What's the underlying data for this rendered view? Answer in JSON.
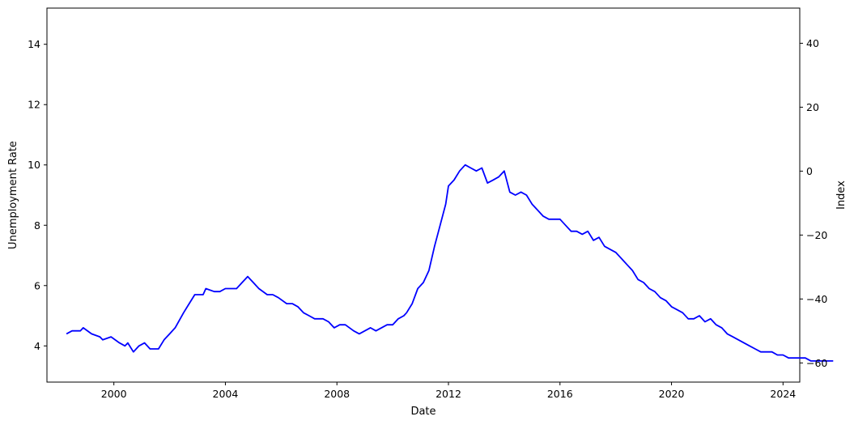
{
  "chart_data": {
    "type": "line",
    "title": "",
    "xlabel": "Date",
    "ylabel_left": "Unemployment Rate",
    "ylabel_right": "Index",
    "xlim": [
      1997.6,
      2024.6
    ],
    "ylim_left": [
      2.8,
      15.2
    ],
    "ylim_right": [
      -66,
      51
    ],
    "x_ticks": [
      2000,
      2004,
      2008,
      2012,
      2016,
      2020,
      2024
    ],
    "y_ticks_left": [
      4,
      6,
      8,
      10,
      12,
      14
    ],
    "y_ticks_right": [
      -60,
      -40,
      -20,
      0,
      20,
      40
    ],
    "grid": false,
    "series": [
      {
        "axis": "left",
        "color": "#0000ff",
        "points": [
          [
            1998.3,
            4.4
          ],
          [
            1998.5,
            4.5
          ],
          [
            1998.8,
            4.5
          ],
          [
            1998.9,
            4.6
          ],
          [
            1999.2,
            4.4
          ],
          [
            1999.5,
            4.3
          ],
          [
            1999.6,
            4.2
          ],
          [
            1999.9,
            4.3
          ],
          [
            2000.2,
            4.1
          ],
          [
            2000.4,
            4.0
          ],
          [
            2000.5,
            4.1
          ],
          [
            2000.7,
            3.8
          ],
          [
            2000.9,
            4.0
          ],
          [
            2001.1,
            4.1
          ],
          [
            2001.3,
            3.9
          ],
          [
            2001.6,
            3.9
          ],
          [
            2001.8,
            4.2
          ],
          [
            2002.0,
            4.4
          ],
          [
            2002.2,
            4.6
          ],
          [
            2002.5,
            5.1
          ],
          [
            2002.7,
            5.4
          ],
          [
            2002.9,
            5.7
          ],
          [
            2003.2,
            5.7
          ],
          [
            2003.3,
            5.9
          ],
          [
            2003.6,
            5.8
          ],
          [
            2003.8,
            5.8
          ],
          [
            2004.0,
            5.9
          ],
          [
            2004.2,
            5.9
          ],
          [
            2004.4,
            5.9
          ],
          [
            2004.6,
            6.1
          ],
          [
            2004.8,
            6.3
          ],
          [
            2005.0,
            6.1
          ],
          [
            2005.2,
            5.9
          ],
          [
            2005.5,
            5.7
          ],
          [
            2005.7,
            5.7
          ],
          [
            2005.9,
            5.6
          ],
          [
            2006.2,
            5.4
          ],
          [
            2006.4,
            5.4
          ],
          [
            2006.6,
            5.3
          ],
          [
            2006.8,
            5.1
          ],
          [
            2007.0,
            5.0
          ],
          [
            2007.2,
            4.9
          ],
          [
            2007.5,
            4.9
          ],
          [
            2007.7,
            4.8
          ],
          [
            2007.9,
            4.6
          ],
          [
            2008.1,
            4.7
          ],
          [
            2008.3,
            4.7
          ],
          [
            2008.6,
            4.5
          ],
          [
            2008.8,
            4.4
          ],
          [
            2009.0,
            4.5
          ],
          [
            2009.2,
            4.6
          ],
          [
            2009.4,
            4.5
          ],
          [
            2009.6,
            4.6
          ],
          [
            2009.8,
            4.7
          ],
          [
            2010.0,
            4.7
          ],
          [
            2010.2,
            4.9
          ],
          [
            2010.4,
            5.0
          ],
          [
            2010.5,
            5.1
          ],
          [
            2010.7,
            5.4
          ],
          [
            2010.9,
            5.9
          ],
          [
            2011.1,
            6.1
          ],
          [
            2011.3,
            6.5
          ],
          [
            2011.5,
            7.3
          ],
          [
            2011.7,
            8.0
          ],
          [
            2011.9,
            8.7
          ],
          [
            2012.0,
            9.3
          ],
          [
            2012.2,
            9.5
          ],
          [
            2012.4,
            9.8
          ],
          [
            2012.6,
            10.0
          ],
          [
            2012.8,
            9.9
          ],
          [
            2013.0,
            9.8
          ],
          [
            2013.2,
            9.9
          ],
          [
            2013.4,
            9.4
          ],
          [
            2013.6,
            9.5
          ],
          [
            2013.8,
            9.6
          ],
          [
            2014.0,
            9.8
          ],
          [
            2014.2,
            9.1
          ],
          [
            2014.4,
            9.0
          ],
          [
            2014.6,
            9.1
          ],
          [
            2014.8,
            9.0
          ],
          [
            2015.0,
            8.7
          ],
          [
            2015.2,
            8.5
          ],
          [
            2015.4,
            8.3
          ],
          [
            2015.6,
            8.2
          ],
          [
            2015.8,
            8.2
          ],
          [
            2016.0,
            8.2
          ],
          [
            2016.2,
            8.0
          ],
          [
            2016.4,
            7.8
          ],
          [
            2016.6,
            7.8
          ],
          [
            2016.8,
            7.7
          ],
          [
            2017.0,
            7.8
          ],
          [
            2017.2,
            7.5
          ],
          [
            2017.4,
            7.6
          ],
          [
            2017.6,
            7.3
          ],
          [
            2017.8,
            7.2
          ],
          [
            2018.0,
            7.1
          ],
          [
            2018.2,
            6.9
          ],
          [
            2018.4,
            6.7
          ],
          [
            2018.6,
            6.5
          ],
          [
            2018.8,
            6.2
          ],
          [
            2019.0,
            6.1
          ],
          [
            2019.2,
            5.9
          ],
          [
            2019.4,
            5.8
          ],
          [
            2019.6,
            5.6
          ],
          [
            2019.8,
            5.5
          ],
          [
            2020.0,
            5.3
          ],
          [
            2020.2,
            5.2
          ],
          [
            2020.4,
            5.1
          ],
          [
            2020.6,
            4.9
          ],
          [
            2020.8,
            4.9
          ],
          [
            2021.0,
            5.0
          ],
          [
            2021.2,
            4.8
          ],
          [
            2021.4,
            4.9
          ],
          [
            2021.6,
            4.7
          ],
          [
            2021.8,
            4.6
          ],
          [
            2022.0,
            4.4
          ],
          [
            2022.2,
            4.3
          ],
          [
            2022.4,
            4.2
          ],
          [
            2022.6,
            4.1
          ],
          [
            2022.8,
            4.0
          ],
          [
            2023.0,
            3.9
          ],
          [
            2023.2,
            3.8
          ],
          [
            2023.4,
            3.8
          ],
          [
            2023.6,
            3.8
          ],
          [
            2023.8,
            3.7
          ],
          [
            2024.0,
            3.7
          ],
          [
            2024.2,
            3.6
          ],
          [
            2024.4,
            3.6
          ],
          [
            2024.6,
            3.6
          ],
          [
            2024.8,
            3.6
          ],
          [
            2025.0,
            3.5
          ],
          [
            2025.3,
            3.5
          ],
          [
            2025.6,
            3.5
          ],
          [
            2025.8,
            3.5
          ]
        ]
      }
    ]
  }
}
